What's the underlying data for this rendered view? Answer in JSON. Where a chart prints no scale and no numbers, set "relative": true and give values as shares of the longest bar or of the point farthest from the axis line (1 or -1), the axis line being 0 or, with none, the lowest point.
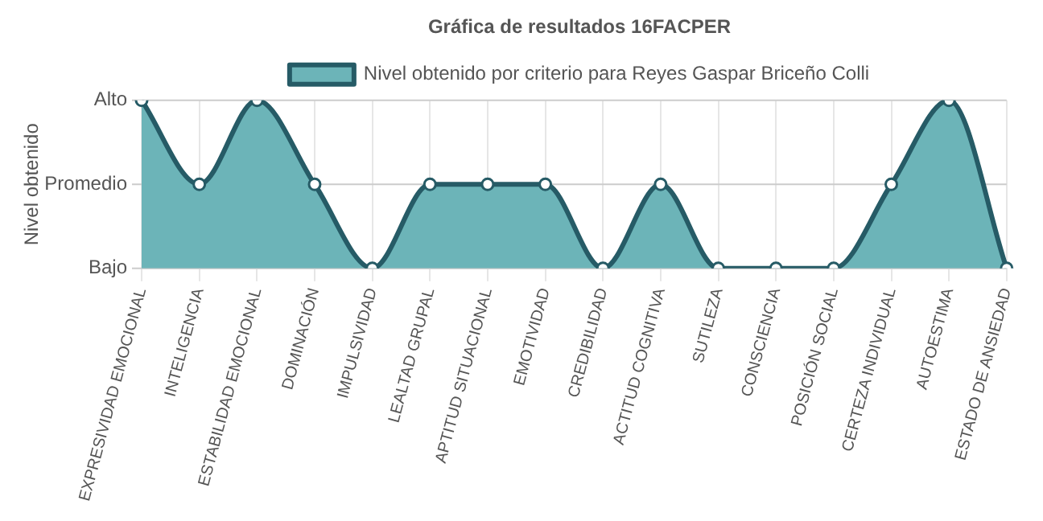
{
  "chart_data": {
    "type": "area",
    "title": "Gráfica de resultados 16FACPER",
    "ylabel": "Nivel obtenido",
    "categories": [
      "EXPRESIVIDAD EMOCIONAL",
      "INTELIGENCIA",
      "ESTABILIDAD EMOCIONAL",
      "DOMINACIÓN",
      "IMPULSIVIDAD",
      "LEALTAD GRUPAL",
      "APTITUD SITUACIONAL",
      "EMOTIVIDAD",
      "CREDIBILIDAD",
      "ACTITUD COGNITIVA",
      "SUTILEZA",
      "CONSCIENCIA",
      "POSICIÓN SOCIAL",
      "CERTEZA INDIVIDUAL",
      "AUTOESTIMA",
      "ESTADO DE ANSIEDAD"
    ],
    "series": [
      {
        "name": "Nivel obtenido por criterio para Reyes Gaspar Briceño Colli",
        "color": "#6cb4b8",
        "values": [
          1,
          0.5,
          1,
          0.5,
          0,
          0.5,
          0.5,
          0.5,
          0,
          0.5,
          0,
          0,
          0,
          0.5,
          1,
          0
        ]
      }
    ],
    "relative": true,
    "ref_lines": [
      {
        "axis": "y",
        "value": 0,
        "label": "Bajo",
        "color": "#cccccc"
      },
      {
        "axis": "y",
        "value": 0.5,
        "label": "Promedio",
        "color": "#cccccc"
      },
      {
        "axis": "y",
        "value": 1,
        "label": "Alto",
        "color": "#cccccc"
      }
    ],
    "grid": true,
    "legend": "top",
    "marker": "circle",
    "line_style": "solid"
  }
}
